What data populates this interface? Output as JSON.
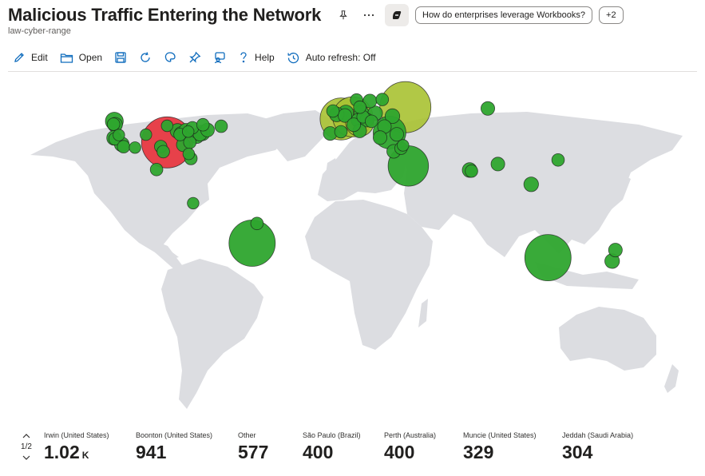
{
  "header": {
    "title": "Malicious Traffic Entering the Network",
    "subtitle": "law-cyber-range",
    "suggestion_chip": "How do enterprises leverage Workbooks?",
    "more_chip": "+2"
  },
  "toolbar": {
    "edit_label": "Edit",
    "open_label": "Open",
    "help_label": "Help",
    "auto_refresh_label": "Auto refresh: Off"
  },
  "colors": {
    "land": "#dcdde1",
    "water": "#ffffff",
    "bubble_green": "#2ea52e",
    "bubble_yellowgreen": "#a8c232",
    "bubble_red": "#e8303a",
    "bubble_stroke": "#1b1b1b"
  },
  "map_points": [
    {
      "lon": -93.3,
      "lat": 35.2,
      "count": 1020,
      "color": "red"
    },
    {
      "lon": 37.6,
      "lat": 55.7,
      "count": 577,
      "color": "yellowgreen"
    },
    {
      "lon": 2.3,
      "lat": 48.9,
      "count": 329,
      "color": "yellowgreen"
    },
    {
      "lon": 8.7,
      "lat": 50.1,
      "count": 300,
      "color": "yellowgreen"
    },
    {
      "lon": 12.5,
      "lat": 47.0,
      "count": 150,
      "color": "yellowgreen"
    },
    {
      "lon": 39.2,
      "lat": 21.5,
      "count": 304,
      "color": "green"
    },
    {
      "lon": 28.9,
      "lat": 41.0,
      "count": 200,
      "color": "green"
    },
    {
      "lon": -122.3,
      "lat": 47.6,
      "count": 60,
      "color": "green"
    },
    {
      "lon": -121.9,
      "lat": 45.5,
      "count": 40,
      "color": "green"
    },
    {
      "lon": -122.7,
      "lat": 45.8,
      "count": 30,
      "color": "green"
    },
    {
      "lon": -122.4,
      "lat": 37.8,
      "count": 40,
      "color": "green"
    },
    {
      "lon": -121.9,
      "lat": 37.3,
      "count": 30,
      "color": "green"
    },
    {
      "lon": -118.2,
      "lat": 34.1,
      "count": 40,
      "color": "green"
    },
    {
      "lon": -117.2,
      "lat": 32.7,
      "count": 30,
      "color": "green"
    },
    {
      "lon": -119.8,
      "lat": 39.5,
      "count": 25,
      "color": "green"
    },
    {
      "lon": -104.9,
      "lat": 39.7,
      "count": 25,
      "color": "green"
    },
    {
      "lon": -96.8,
      "lat": 32.8,
      "count": 30,
      "color": "green"
    },
    {
      "lon": -95.4,
      "lat": 29.8,
      "count": 30,
      "color": "green"
    },
    {
      "lon": -93.3,
      "lat": 44.9,
      "count": 25,
      "color": "green"
    },
    {
      "lon": -87.6,
      "lat": 41.9,
      "count": 40,
      "color": "green"
    },
    {
      "lon": -86.2,
      "lat": 39.8,
      "count": 30,
      "color": "green"
    },
    {
      "lon": -85.4,
      "lat": 40.2,
      "count": 40,
      "color": "green"
    },
    {
      "lon": -84.4,
      "lat": 33.8,
      "count": 35,
      "color": "green"
    },
    {
      "lon": -83.0,
      "lat": 42.3,
      "count": 35,
      "color": "green"
    },
    {
      "lon": -81.7,
      "lat": 41.5,
      "count": 25,
      "color": "green"
    },
    {
      "lon": -80.8,
      "lat": 35.2,
      "count": 30,
      "color": "green"
    },
    {
      "lon": -80.2,
      "lat": 25.8,
      "count": 30,
      "color": "green"
    },
    {
      "lon": -81.4,
      "lat": 28.5,
      "count": 25,
      "color": "green"
    },
    {
      "lon": -77.0,
      "lat": 38.9,
      "count": 40,
      "color": "green"
    },
    {
      "lon": -75.2,
      "lat": 40.0,
      "count": 35,
      "color": "green"
    },
    {
      "lon": -74.0,
      "lat": 40.7,
      "count": 45,
      "color": "green"
    },
    {
      "lon": -71.1,
      "lat": 42.4,
      "count": 35,
      "color": "green"
    },
    {
      "lon": -79.4,
      "lat": 43.7,
      "count": 30,
      "color": "green"
    },
    {
      "lon": -73.6,
      "lat": 45.5,
      "count": 30,
      "color": "green"
    },
    {
      "lon": -63.6,
      "lat": 44.6,
      "count": 30,
      "color": "green"
    },
    {
      "lon": -99.1,
      "lat": 19.4,
      "count": 30,
      "color": "green"
    },
    {
      "lon": -110.9,
      "lat": 32.2,
      "count": 25,
      "color": "green"
    },
    {
      "lon": -79.0,
      "lat": -0.2,
      "count": 25,
      "color": "green"
    },
    {
      "lon": -46.6,
      "lat": -23.5,
      "count": 400,
      "color": "green"
    },
    {
      "lon": -43.9,
      "lat": -12.0,
      "count": 30,
      "color": "green"
    },
    {
      "lon": -0.1,
      "lat": 51.5,
      "count": 40,
      "color": "green"
    },
    {
      "lon": -2.2,
      "lat": 53.5,
      "count": 30,
      "color": "green"
    },
    {
      "lon": 4.9,
      "lat": 52.4,
      "count": 45,
      "color": "green"
    },
    {
      "lon": 4.4,
      "lat": 50.9,
      "count": 35,
      "color": "green"
    },
    {
      "lon": 13.4,
      "lat": 52.5,
      "count": 40,
      "color": "green"
    },
    {
      "lon": 11.6,
      "lat": 48.1,
      "count": 35,
      "color": "green"
    },
    {
      "lon": 16.4,
      "lat": 48.2,
      "count": 35,
      "color": "green"
    },
    {
      "lon": 21.0,
      "lat": 52.2,
      "count": 40,
      "color": "green"
    },
    {
      "lon": 14.4,
      "lat": 50.1,
      "count": 30,
      "color": "green"
    },
    {
      "lon": 19.0,
      "lat": 47.5,
      "count": 30,
      "color": "green"
    },
    {
      "lon": 12.5,
      "lat": 41.9,
      "count": 35,
      "color": "green"
    },
    {
      "lon": 9.2,
      "lat": 45.5,
      "count": 35,
      "color": "green"
    },
    {
      "lon": -3.7,
      "lat": 40.4,
      "count": 35,
      "color": "green"
    },
    {
      "lon": 2.2,
      "lat": 41.4,
      "count": 30,
      "color": "green"
    },
    {
      "lon": 18.1,
      "lat": 59.3,
      "count": 35,
      "color": "green"
    },
    {
      "lon": 10.8,
      "lat": 59.9,
      "count": 30,
      "color": "green"
    },
    {
      "lon": 24.9,
      "lat": 60.2,
      "count": 30,
      "color": "green"
    },
    {
      "lon": 12.6,
      "lat": 55.7,
      "count": 30,
      "color": "green"
    },
    {
      "lon": 30.5,
      "lat": 50.5,
      "count": 40,
      "color": "green"
    },
    {
      "lon": 26.1,
      "lat": 44.4,
      "count": 35,
      "color": "green"
    },
    {
      "lon": 23.7,
      "lat": 38.0,
      "count": 35,
      "color": "green"
    },
    {
      "lon": 32.9,
      "lat": 39.9,
      "count": 35,
      "color": "green"
    },
    {
      "lon": 35.2,
      "lat": 31.8,
      "count": 30,
      "color": "green"
    },
    {
      "lon": 31.2,
      "lat": 30.0,
      "count": 35,
      "color": "green"
    },
    {
      "lon": 36.3,
      "lat": 33.5,
      "count": 25,
      "color": "green"
    },
    {
      "lon": 82.9,
      "lat": 55.0,
      "count": 35,
      "color": "green"
    },
    {
      "lon": 72.9,
      "lat": 19.1,
      "count": 40,
      "color": "green"
    },
    {
      "lon": 73.9,
      "lat": 18.5,
      "count": 30,
      "color": "green"
    },
    {
      "lon": 88.4,
      "lat": 22.6,
      "count": 35,
      "color": "green"
    },
    {
      "lon": 106.7,
      "lat": 10.8,
      "count": 40,
      "color": "green"
    },
    {
      "lon": 121.5,
      "lat": 25.0,
      "count": 30,
      "color": "green"
    },
    {
      "lon": 115.9,
      "lat": -31.9,
      "count": 400,
      "color": "green"
    },
    {
      "lon": 151.2,
      "lat": -33.9,
      "count": 40,
      "color": "green"
    },
    {
      "lon": 153.0,
      "lat": -27.5,
      "count": 35,
      "color": "green"
    }
  ],
  "stats_pager": {
    "label": "1/2"
  },
  "stats": [
    {
      "label": "Irwin (United States)",
      "value": "1.02",
      "unit": "K"
    },
    {
      "label": "Boonton (United States)",
      "value": "941",
      "unit": ""
    },
    {
      "label": "Other",
      "value": "577",
      "unit": ""
    },
    {
      "label": "São Paulo (Brazil)",
      "value": "400",
      "unit": ""
    },
    {
      "label": "Perth (Australia)",
      "value": "400",
      "unit": ""
    },
    {
      "label": "Muncie (United States)",
      "value": "329",
      "unit": ""
    },
    {
      "label": "Jeddah (Saudi Arabia)",
      "value": "304",
      "unit": ""
    }
  ]
}
